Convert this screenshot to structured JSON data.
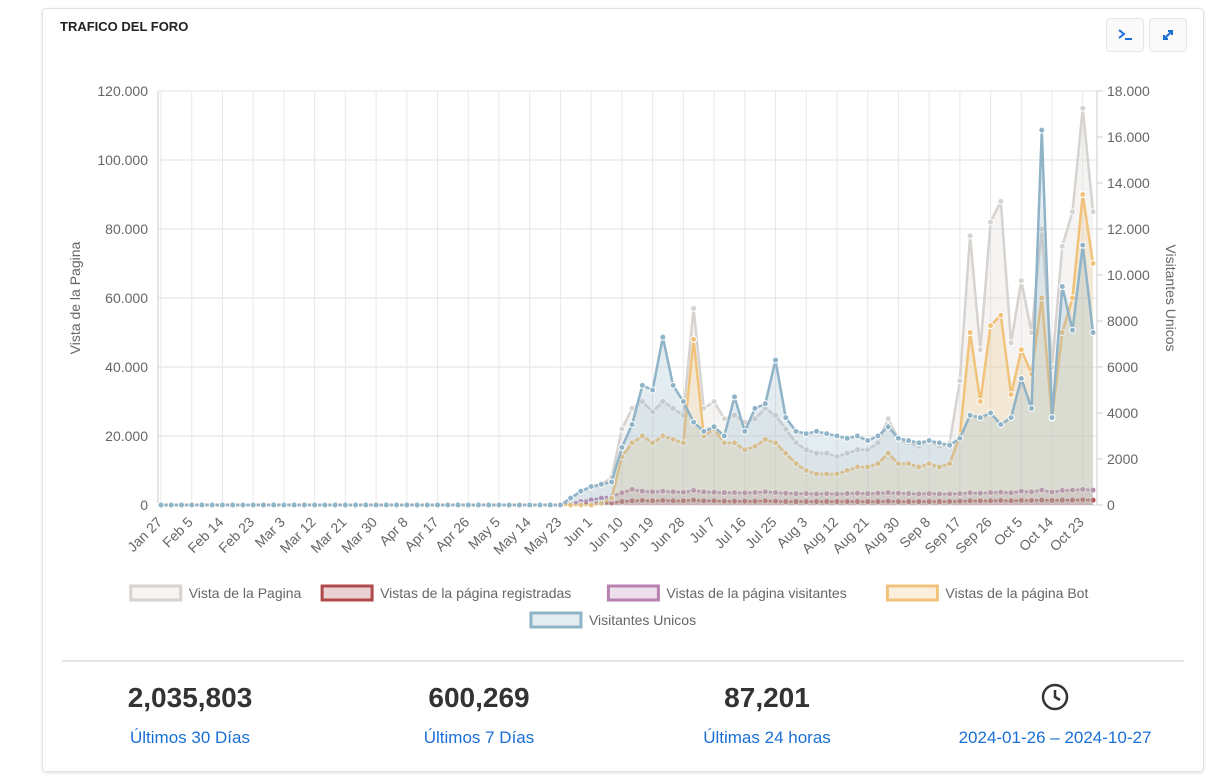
{
  "header": {
    "title": "TRAFICO DEL FORO"
  },
  "chart_data": {
    "type": "line",
    "ylabel": "Vista de la Pagina",
    "y2label": "Visitantes Unicos",
    "categories": [
      "Jan 27",
      null,
      null,
      "Feb 5",
      null,
      null,
      "Feb 14",
      null,
      null,
      "Feb 23",
      null,
      null,
      "Mar 3",
      null,
      null,
      "Mar 12",
      null,
      null,
      "Mar 21",
      null,
      null,
      "Mar 30",
      null,
      null,
      "Apr 8",
      null,
      null,
      "Apr 17",
      null,
      null,
      "Apr 26",
      null,
      null,
      "May 5",
      null,
      null,
      "May 14",
      null,
      null,
      "May 23",
      null,
      null,
      "Jun 1",
      null,
      null,
      "Jun 10",
      null,
      null,
      "Jun 19",
      null,
      null,
      "Jun 28",
      null,
      null,
      "Jul 7",
      null,
      null,
      "Jul 16",
      null,
      null,
      "Jul 25",
      null,
      null,
      "Aug 3",
      null,
      null,
      "Aug 12",
      null,
      null,
      "Aug 21",
      null,
      null,
      "Aug 30",
      null,
      null,
      "Sep 8",
      null,
      null,
      "Sep 17",
      null,
      null,
      "Sep 26",
      null,
      null,
      "Oct 5",
      null,
      null,
      "Oct 14",
      null,
      null,
      "Oct 23",
      null
    ],
    "ylim": [
      0,
      120000
    ],
    "yticks": [
      0,
      {
        "value": 20000,
        "label": "20.000"
      },
      {
        "value": 40000,
        "label": "40.000"
      },
      {
        "value": 60000,
        "label": "60.000"
      },
      {
        "value": 80000,
        "label": "80.000"
      },
      {
        "value": 100000,
        "label": "100.000"
      },
      {
        "value": 120000,
        "label": "120.000"
      }
    ],
    "y2lim": [
      0,
      18000
    ],
    "y2ticks": [
      0,
      2000,
      4000,
      6000,
      8000,
      {
        "value": 10000,
        "label": "10.000"
      },
      {
        "value": 12000,
        "label": "12.000"
      },
      {
        "value": 14000,
        "label": "14.000"
      },
      {
        "value": 16000,
        "label": "16.000"
      },
      {
        "value": 18000,
        "label": "18.000"
      }
    ],
    "grid": true,
    "series": [
      {
        "name": "Vista de la Pagina",
        "color": "#d6d3d0",
        "values": [
          0,
          0,
          0,
          0,
          0,
          0,
          0,
          0,
          0,
          0,
          0,
          0,
          0,
          0,
          0,
          0,
          0,
          0,
          0,
          0,
          0,
          0,
          0,
          0,
          0,
          0,
          0,
          0,
          0,
          0,
          0,
          0,
          0,
          0,
          0,
          0,
          0,
          0,
          0,
          0,
          2000,
          4000,
          5000,
          6000,
          8000,
          22000,
          28000,
          30000,
          27000,
          30000,
          28000,
          26000,
          57000,
          28000,
          30000,
          25000,
          26000,
          24000,
          25000,
          28000,
          26000,
          22000,
          18000,
          16000,
          15000,
          15000,
          14000,
          15000,
          16000,
          16000,
          18000,
          25000,
          19000,
          18000,
          17000,
          19000,
          17000,
          18000,
          36000,
          78000,
          45000,
          82000,
          88000,
          47000,
          65000,
          50000,
          80000,
          40000,
          75000,
          85000,
          115000,
          85000
        ]
      },
      {
        "name": "Vistas de la página registradas",
        "color": "#b04a4a",
        "values": [
          0,
          0,
          0,
          0,
          0,
          0,
          0,
          0,
          0,
          0,
          0,
          0,
          0,
          0,
          0,
          0,
          0,
          0,
          0,
          0,
          0,
          0,
          0,
          0,
          0,
          0,
          0,
          0,
          0,
          0,
          0,
          0,
          0,
          0,
          0,
          0,
          0,
          0,
          0,
          0,
          200,
          400,
          500,
          500,
          600,
          1000,
          1200,
          1300,
          1200,
          1300,
          1200,
          1200,
          1400,
          1200,
          1200,
          1100,
          1100,
          1100,
          1100,
          1200,
          1100,
          1000,
          1000,
          1000,
          1000,
          1000,
          1000,
          1000,
          1000,
          1000,
          1000,
          1100,
          1000,
          1000,
          1000,
          1000,
          1000,
          1000,
          1100,
          1200,
          1200,
          1200,
          1300,
          1200,
          1300,
          1300,
          1400,
          1300,
          1400,
          1400,
          1500,
          1400
        ]
      },
      {
        "name": "Vistas de la página visitantes",
        "color": "#b782b0",
        "values": [
          0,
          0,
          0,
          0,
          0,
          0,
          0,
          0,
          0,
          0,
          0,
          0,
          0,
          0,
          0,
          0,
          0,
          0,
          0,
          0,
          0,
          0,
          0,
          0,
          0,
          0,
          0,
          0,
          0,
          0,
          0,
          0,
          0,
          0,
          0,
          0,
          0,
          0,
          0,
          0,
          500,
          1000,
          1500,
          2000,
          2500,
          3500,
          4500,
          4000,
          3800,
          4000,
          3800,
          3700,
          4200,
          3800,
          3700,
          3600,
          3600,
          3500,
          3600,
          3800,
          3600,
          3400,
          3300,
          3300,
          3200,
          3300,
          3200,
          3300,
          3400,
          3300,
          3400,
          3600,
          3400,
          3300,
          3200,
          3300,
          3200,
          3200,
          3300,
          3500,
          3400,
          3600,
          3700,
          3500,
          4000,
          3800,
          4300,
          3700,
          4200,
          4300,
          4500,
          4300
        ]
      },
      {
        "name": "Vistas de la página Bot",
        "color": "#f0c27a",
        "values": [
          0,
          0,
          0,
          0,
          0,
          0,
          0,
          0,
          0,
          0,
          0,
          0,
          0,
          0,
          0,
          0,
          0,
          0,
          0,
          0,
          0,
          0,
          0,
          0,
          0,
          0,
          0,
          0,
          0,
          0,
          0,
          0,
          0,
          0,
          0,
          0,
          0,
          0,
          0,
          0,
          0,
          0,
          0,
          500,
          2000,
          14000,
          18000,
          20000,
          18000,
          20000,
          19000,
          18000,
          48000,
          20000,
          22000,
          18000,
          18000,
          16000,
          17000,
          19000,
          18000,
          15000,
          12000,
          10000,
          9000,
          9000,
          9000,
          10000,
          11000,
          11000,
          12000,
          15000,
          12000,
          12000,
          11000,
          12000,
          11000,
          12000,
          20000,
          50000,
          30000,
          52000,
          55000,
          32000,
          45000,
          38000,
          60000,
          25000,
          50000,
          60000,
          90000,
          70000
        ]
      },
      {
        "name": "Visitantes Unicos",
        "color": "#8fb3c7",
        "axis": "y2",
        "values": [
          0,
          0,
          0,
          0,
          0,
          0,
          0,
          0,
          0,
          0,
          0,
          0,
          0,
          0,
          0,
          0,
          0,
          0,
          0,
          0,
          0,
          0,
          0,
          0,
          0,
          0,
          0,
          0,
          0,
          0,
          0,
          0,
          0,
          0,
          0,
          0,
          0,
          0,
          0,
          0,
          300,
          600,
          800,
          900,
          1000,
          2500,
          3500,
          5200,
          5000,
          7300,
          5200,
          4500,
          3600,
          3200,
          3400,
          3000,
          4700,
          3200,
          4200,
          4400,
          6300,
          3800,
          3200,
          3100,
          3200,
          3100,
          3000,
          2900,
          3000,
          2800,
          3000,
          3400,
          2900,
          2800,
          2700,
          2800,
          2700,
          2600,
          2900,
          3900,
          3800,
          4000,
          3500,
          3800,
          5500,
          4200,
          16300,
          3800,
          9500,
          7600,
          11300,
          7500
        ]
      }
    ]
  },
  "stats": [
    {
      "value": "2,035,803",
      "label": "Últimos 30 Días"
    },
    {
      "value": "600,269",
      "label": "Últimos 7 Días"
    },
    {
      "value": "87,201",
      "label": "Últimas 24 horas"
    },
    {
      "value": "",
      "label": "2024-01-26 – 2024-10-27"
    }
  ]
}
